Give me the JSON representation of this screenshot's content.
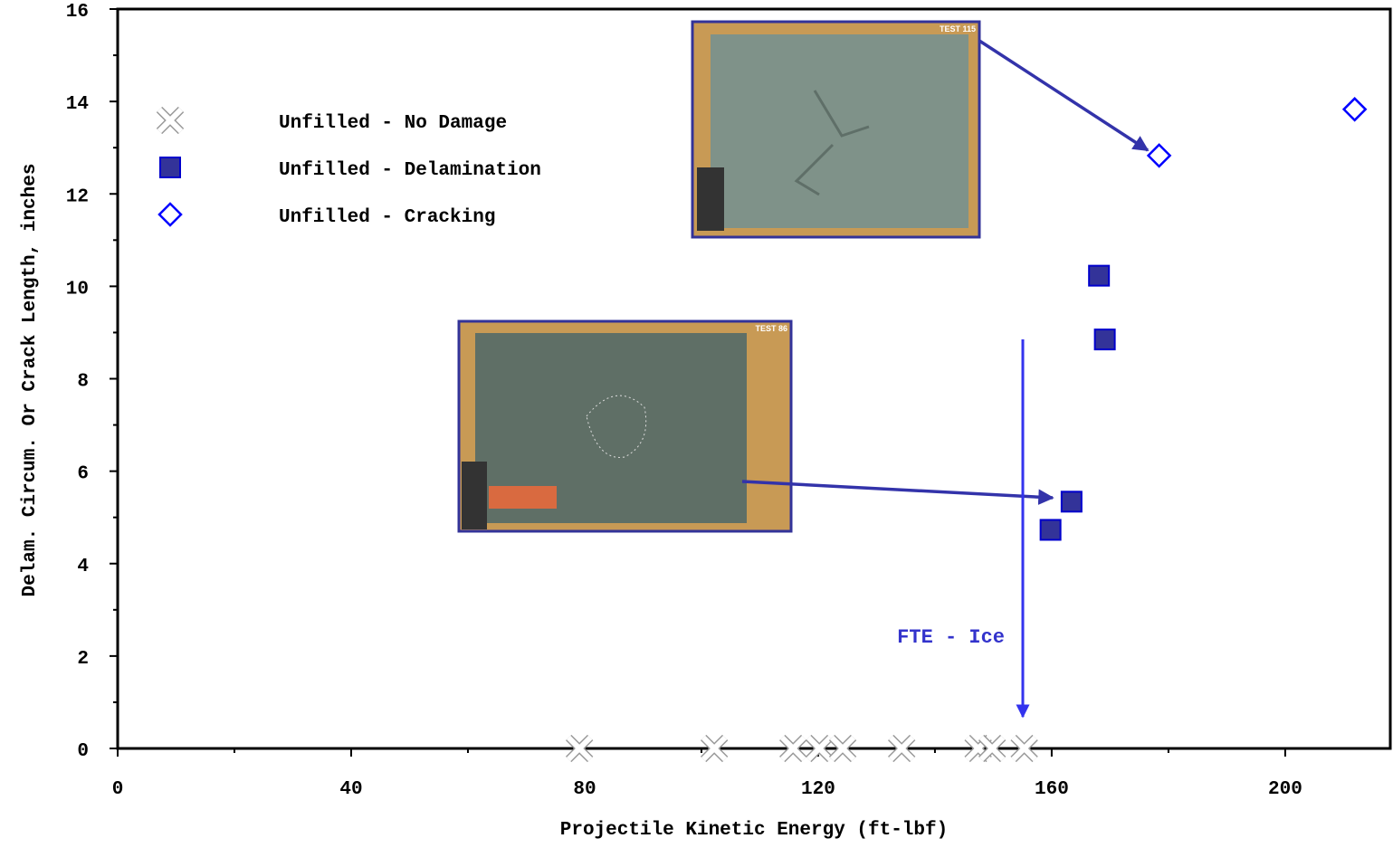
{
  "chart_data": {
    "type": "scatter",
    "xlabel": "Projectile Kinetic Energy (ft-lbf)",
    "ylabel": "Delam. Circum. Or Crack Length, inches",
    "xlim": [
      0,
      218
    ],
    "ylim": [
      0,
      16
    ],
    "xticks": [
      0,
      40,
      80,
      120,
      160,
      200
    ],
    "yticks": [
      0,
      2,
      4,
      6,
      8,
      10,
      12,
      14,
      16
    ],
    "series": [
      {
        "name": "Unfilled - No Damage",
        "marker": "x",
        "color": "#999999",
        "x": [
          79.1,
          102.2,
          115.7,
          120.2,
          124.2,
          134.3,
          147.4,
          149.8,
          155.3
        ],
        "values": [
          0,
          0,
          0,
          0,
          0,
          0,
          0,
          0,
          0
        ]
      },
      {
        "name": "Unfilled - Delamination",
        "marker": "square",
        "color": "#333399",
        "x": [
          159.8,
          163.4,
          168.1,
          169.1
        ],
        "values": [
          4.73,
          5.34,
          10.23,
          8.85
        ]
      },
      {
        "name": "Unfilled - Cracking",
        "marker": "diamond",
        "color": "#0000ff",
        "x": [
          178.4,
          211.9
        ],
        "values": [
          12.83,
          13.83
        ]
      }
    ],
    "annotations": [
      "FTE - Ice",
      "TEST 115",
      "TEST 86"
    ]
  }
}
